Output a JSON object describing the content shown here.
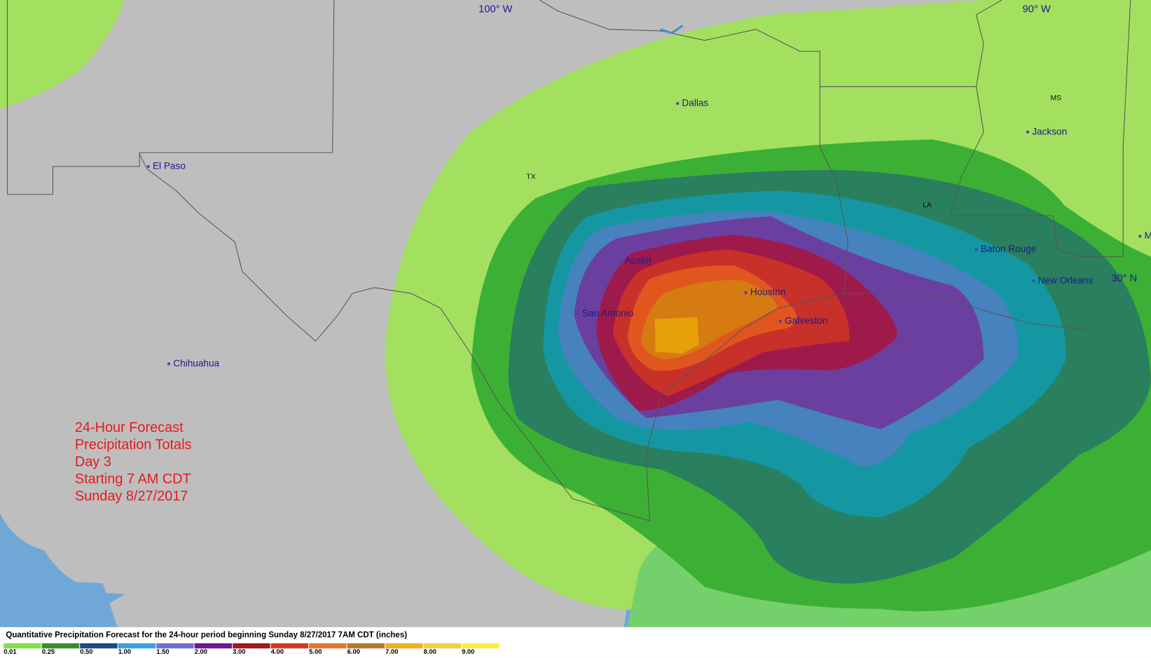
{
  "map": {
    "grid_labels": [
      "100° W",
      "90° W",
      "30° N"
    ],
    "states": [
      "TX",
      "LA",
      "MS"
    ],
    "cities": [
      "El Paso",
      "Dallas",
      "Chihuahua",
      "Austin",
      "San Antonio",
      "Houston",
      "Galveston",
      "Jackson",
      "Baton Rouge",
      "New Orleans",
      "M"
    ],
    "forecast_text": [
      "24-Hour Forecast",
      "Precipitation Totals",
      "Day 3",
      "Starting 7 AM CDT",
      "Sunday 8/27/2017"
    ],
    "legend": {
      "title": "Quantitative Precipitation Forecast for the 24-hour period beginning Sunday 8/27/2017 7AM CDT (inches)",
      "items": [
        {
          "label": "0.01",
          "color": "#7ee04a"
        },
        {
          "label": "0.25",
          "color": "#3c8a2e"
        },
        {
          "label": "0.50",
          "color": "#1a4a80"
        },
        {
          "label": "1.00",
          "color": "#3aa0e0"
        },
        {
          "label": "1.50",
          "color": "#7070d0"
        },
        {
          "label": "2.00",
          "color": "#6a1a90"
        },
        {
          "label": "3.00",
          "color": "#a01820"
        },
        {
          "label": "4.00",
          "color": "#d03a20"
        },
        {
          "label": "5.00",
          "color": "#e07830"
        },
        {
          "label": "6.00",
          "color": "#b07a30"
        },
        {
          "label": "7.00",
          "color": "#f0b020"
        },
        {
          "label": "8.00",
          "color": "#f0d040"
        },
        {
          "label": "9.00",
          "color": "#f8f040"
        }
      ]
    }
  }
}
